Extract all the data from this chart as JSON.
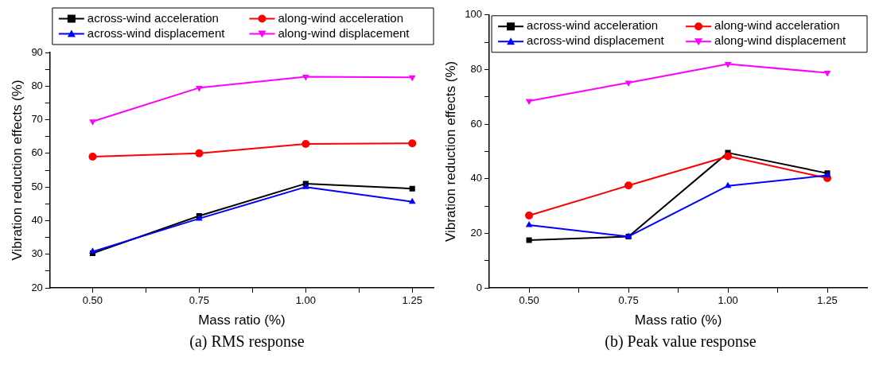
{
  "chart_data": [
    {
      "type": "line",
      "xlabel": "Mass ratio (%)",
      "ylabel": "Vibration reduction effects (%)",
      "x": [
        0.5,
        0.75,
        1.0,
        1.25
      ],
      "xlim": [
        0.4,
        1.3
      ],
      "xticks": [
        {
          "value": 0.5,
          "label": "0.50"
        },
        {
          "value": 0.625,
          "label": null
        },
        {
          "value": 0.75,
          "label": "0.75"
        },
        {
          "value": 0.875,
          "label": null
        },
        {
          "value": 1.0,
          "label": "1.00"
        },
        {
          "value": 1.125,
          "label": null
        },
        {
          "value": 1.25,
          "label": "1.25"
        }
      ],
      "ylim": [
        20,
        90
      ],
      "yticks": [
        20,
        {
          "value": 25,
          "label": null
        },
        30,
        {
          "value": 35,
          "label": null
        },
        40,
        {
          "value": 45,
          "label": null
        },
        50,
        {
          "value": 55,
          "label": null
        },
        60,
        {
          "value": 65,
          "label": null
        },
        70,
        {
          "value": 75,
          "label": null
        },
        80,
        {
          "value": 85,
          "label": null
        },
        90
      ],
      "grid": false,
      "legend": "top",
      "annotations": [
        "(a) RMS response"
      ],
      "series": [
        {
          "name": "across-wind acceleration",
          "color": "#000000",
          "marker": "square",
          "values": [
            30.3,
            41.4,
            51,
            49.5
          ]
        },
        {
          "name": "along-wind acceleration",
          "color": "#ff0000",
          "marker": "circle",
          "values": [
            59,
            60,
            62.8,
            63
          ]
        },
        {
          "name": "across-wind displacement",
          "color": "#0000ff",
          "marker": "triangle",
          "values": [
            30.8,
            40.6,
            50,
            45.6
          ]
        },
        {
          "name": "along-wind displacement",
          "color": "#ff00ff",
          "marker": "triangle-down",
          "values": [
            69.5,
            79.5,
            82.8,
            82.6
          ]
        }
      ]
    },
    {
      "type": "line",
      "xlabel": "Mass ratio (%)",
      "ylabel": "Vibration reduction effects (%)",
      "x": [
        0.5,
        0.75,
        1.0,
        1.25
      ],
      "xlim": [
        0.4,
        1.35
      ],
      "xticks": [
        {
          "value": 0.5,
          "label": "0.50"
        },
        {
          "value": 0.625,
          "label": null
        },
        {
          "value": 0.75,
          "label": "0.75"
        },
        {
          "value": 0.875,
          "label": null
        },
        {
          "value": 1.0,
          "label": "1.00"
        },
        {
          "value": 1.125,
          "label": null
        },
        {
          "value": 1.25,
          "label": "1.25"
        }
      ],
      "ylim": [
        0,
        100
      ],
      "yticks": [
        0,
        {
          "value": 10,
          "label": null
        },
        20,
        {
          "value": 30,
          "label": null
        },
        40,
        {
          "value": 50,
          "label": null
        },
        60,
        {
          "value": 70,
          "label": null
        },
        80,
        {
          "value": 90,
          "label": null
        },
        100
      ],
      "grid": false,
      "legend": "top right",
      "annotations": [
        "(b) Peak value response"
      ],
      "series": [
        {
          "name": "across-wind acceleration",
          "color": "#000000",
          "marker": "square",
          "values": [
            17.5,
            18.8,
            49.5,
            42
          ]
        },
        {
          "name": "along-wind acceleration",
          "color": "#ff0000",
          "marker": "circle",
          "values": [
            26.5,
            37.5,
            48.2,
            40.2
          ]
        },
        {
          "name": "across-wind displacement",
          "color": "#0000ff",
          "marker": "triangle",
          "values": [
            23,
            18.8,
            37.4,
            41.2
          ]
        },
        {
          "name": "along-wind displacement",
          "color": "#ff00ff",
          "marker": "triangle-down",
          "values": [
            68.5,
            75.2,
            82,
            78.8
          ]
        }
      ]
    }
  ]
}
